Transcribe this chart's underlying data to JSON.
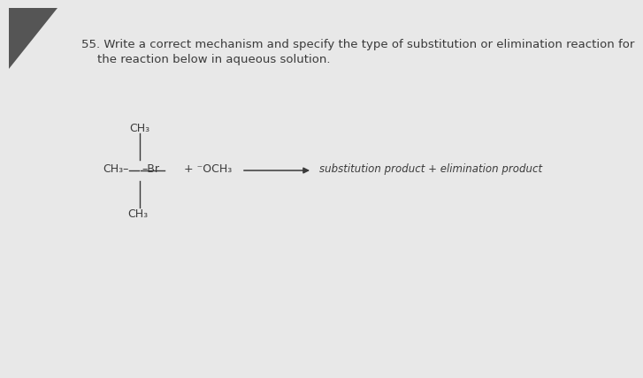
{
  "bg_color": "#d4d4d4",
  "page_color": "#e8e8e8",
  "text_color": "#3a3a3a",
  "question_line1": "55. Write a correct mechanism and specify the type of substitution or elimination reaction for",
  "question_line2": "the reaction below in aqueous solution.",
  "q_fontsize": 9.5,
  "mol_fontsize": 9.0,
  "prod_fontsize": 8.5,
  "ch3_top": "CH₃",
  "ch3_bottom": "CH₃",
  "ch3_left": "CH₃–",
  "br_text": "–Br",
  "och3_text": "+ ⁻OCH₃",
  "products_text": "substitution product + elimination product",
  "corner_dark": true
}
